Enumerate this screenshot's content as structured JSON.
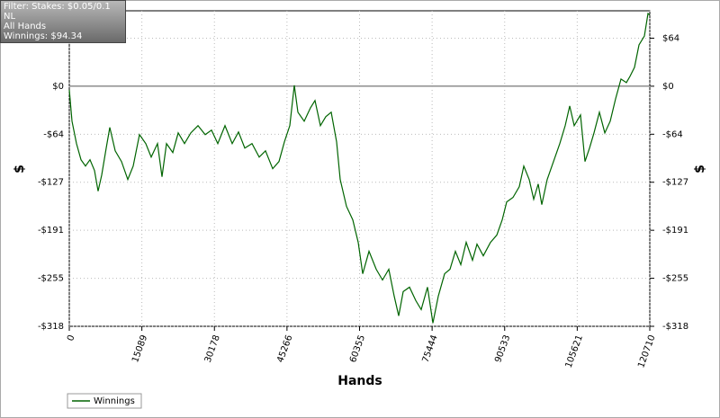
{
  "info": {
    "filter": "Filter: Stakes: $0.05/0.1 NL",
    "hands": "All Hands",
    "winnings": "Winnings: $94.34"
  },
  "chart_data": {
    "type": "line",
    "x_label": "Hands",
    "y_label": "$",
    "y2_label": "$",
    "grid": true,
    "legend": "bottom-left",
    "xlim": [
      0,
      120710
    ],
    "xticks": [
      0,
      15089,
      30178,
      45266,
      60355,
      75444,
      90533,
      105621,
      120710
    ],
    "ylim": [
      -318.4,
      100
    ],
    "yticks": [
      {
        "value": -318.4,
        "label": "-$318"
      },
      {
        "value": -254.72,
        "label": "-$255"
      },
      {
        "value": -191.04,
        "label": "-$191"
      },
      {
        "value": -127.36,
        "label": "-$127"
      },
      {
        "value": -63.68,
        "label": "-$64"
      },
      {
        "value": 0,
        "label": "$0"
      },
      {
        "value": 63.68,
        "label": "$64"
      }
    ],
    "series": [
      {
        "name": "Winnings",
        "color": "#006400",
        "x": [
          0,
          561,
          1497,
          2433,
          3369,
          4304,
          5240,
          5989,
          6737,
          7673,
          8422,
          9544,
          10855,
          12165,
          13288,
          14598,
          15908,
          17031,
          18341,
          19277,
          20213,
          21523,
          22646,
          23956,
          25266,
          26763,
          28260,
          29570,
          30880,
          32377,
          33874,
          35184,
          36494,
          37991,
          39488,
          40798,
          42295,
          43606,
          44729,
          45851,
          46787,
          47536,
          48846,
          50156,
          51092,
          52215,
          53338,
          54461,
          55583,
          56332,
          57642,
          58952,
          60075,
          61011,
          62321,
          63818,
          65127,
          66437,
          67560,
          68496,
          69432,
          70742,
          72052,
          73175,
          74485,
          75607,
          76730,
          78040,
          79163,
          80286,
          81409,
          82532,
          83842,
          84778,
          86088,
          87585,
          88895,
          90018,
          90954,
          92264,
          93574,
          94510,
          95633,
          96569,
          97505,
          98253,
          99376,
          100686,
          101996,
          103119,
          104055,
          104990,
          106300,
          107236,
          108172,
          109108,
          110231,
          111354,
          112477,
          113599,
          114722,
          115845,
          116594,
          117529,
          118465,
          119588,
          120336,
          120710
        ],
        "values": [
          -4.8,
          -46.4,
          -76.1,
          -97.5,
          -105.9,
          -97.5,
          -111.8,
          -139.2,
          -117.8,
          -82.1,
          -54.7,
          -85.7,
          -99.9,
          -123.7,
          -105.9,
          -64.2,
          -76.1,
          -94.0,
          -76.1,
          -120.1,
          -76.1,
          -88.0,
          -61.9,
          -76.1,
          -61.9,
          -52.3,
          -64.2,
          -58.3,
          -76.1,
          -52.3,
          -76.1,
          -60.7,
          -82.1,
          -76.1,
          -94.0,
          -85.7,
          -109.4,
          -99.9,
          -73.8,
          -52.3,
          1.2,
          -34.5,
          -46.4,
          -28.6,
          -19.0,
          -52.3,
          -40.4,
          -34.5,
          -73.8,
          -123.7,
          -159.4,
          -177.3,
          -207.0,
          -248.7,
          -218.9,
          -242.7,
          -257.0,
          -242.7,
          -278.4,
          -304.5,
          -272.4,
          -266.5,
          -284.3,
          -296.2,
          -266.5,
          -314.1,
          -278.4,
          -248.7,
          -242.7,
          -218.9,
          -236.7,
          -207.0,
          -230.8,
          -209.4,
          -224.9,
          -207.0,
          -197.5,
          -177.3,
          -153.5,
          -147.5,
          -133.2,
          -105.9,
          -123.7,
          -149.9,
          -129.7,
          -157.0,
          -123.7,
          -99.9,
          -76.1,
          -52.3,
          -26.2,
          -52.3,
          -38.1,
          -99.9,
          -82.1,
          -61.9,
          -34.5,
          -61.9,
          -46.4,
          -16.7,
          9.5,
          4.8,
          13.1,
          25.0,
          54.7,
          66.6,
          96.4,
          94.34
        ]
      }
    ]
  }
}
